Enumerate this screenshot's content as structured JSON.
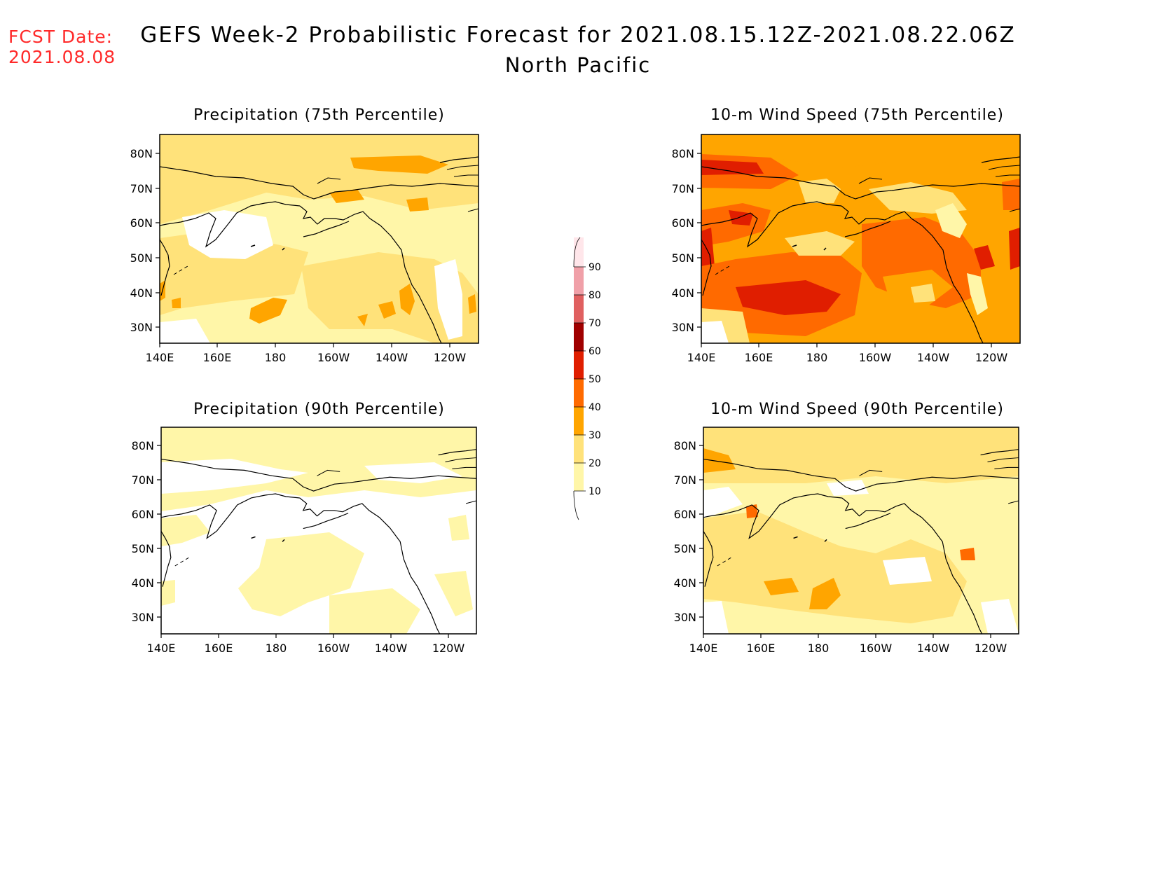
{
  "header": {
    "fcst_label": "FCST Date:",
    "fcst_date": "2021.08.08",
    "title": "GEFS Week-2 Probabilistic Forecast for 2021.08.15.12Z-2021.08.22.06Z",
    "subtitle": "North Pacific"
  },
  "colors": {
    "fcst_text": "#ff2a2a",
    "levels": [
      "#ffffff",
      "#fff6a8",
      "#ffe27a",
      "#ffa500",
      "#ff6a00",
      "#e01e00",
      "#a00000",
      "#e06060",
      "#f0a0a8",
      "#ffe6ea"
    ]
  },
  "axes": {
    "lon_ticks": [
      "140E",
      "160E",
      "180",
      "160W",
      "140W",
      "120W"
    ],
    "lat_ticks": [
      "80N",
      "70N",
      "60N",
      "50N",
      "40N",
      "30N"
    ]
  },
  "panels": [
    {
      "id": "precip-75",
      "title": "Precipitation (75th Percentile)"
    },
    {
      "id": "wind-75",
      "title": "10-m Wind Speed (75th Percentile)"
    },
    {
      "id": "precip-90",
      "title": "Precipitation (90th Percentile)"
    },
    {
      "id": "wind-90",
      "title": "10-m Wind Speed (90th Percentile)"
    }
  ],
  "colorbar": {
    "labels": [
      "10",
      "20",
      "30",
      "40",
      "50",
      "60",
      "70",
      "80",
      "90"
    ]
  }
}
